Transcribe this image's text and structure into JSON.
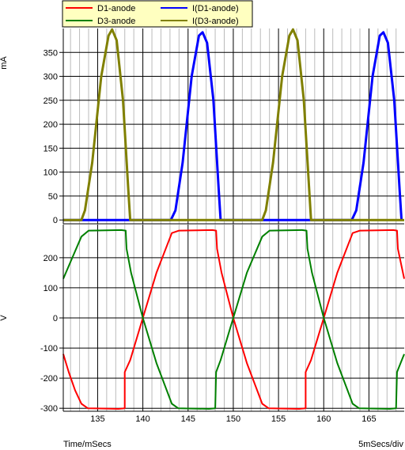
{
  "chart_data": [
    {
      "type": "line",
      "ylabel": "mA",
      "ylim": [
        -8,
        400
      ],
      "yticks": [
        0,
        50,
        100,
        150,
        200,
        250,
        300,
        350
      ],
      "xlim": [
        131.2,
        168.9
      ],
      "grid": true,
      "legend": [
        {
          "name": "I(D1-anode)",
          "color": "#0000ff"
        },
        {
          "name": "I(D3-anode)",
          "color": "#808000"
        }
      ],
      "series": [
        {
          "name": "I(D1-anode)",
          "color": "#0000ff",
          "x": [
            131.2,
            133.2,
            143.1,
            143.6,
            144.4,
            145.4,
            146.2,
            146.6,
            147.1,
            147.8,
            148.4,
            148.6,
            153.1,
            158.2,
            163.1,
            163.6,
            164.4,
            165.4,
            166.2,
            166.6,
            167.1,
            167.8,
            168.4,
            168.6
          ],
          "y": [
            0,
            0,
            0,
            20,
            120,
            300,
            385,
            392,
            370,
            250,
            60,
            0,
            0,
            0,
            0,
            20,
            120,
            300,
            385,
            392,
            370,
            250,
            60,
            0
          ]
        },
        {
          "name": "I(D3-anode)",
          "color": "#808000",
          "x": [
            131.2,
            133.2,
            133.6,
            134.4,
            135.4,
            136.2,
            136.6,
            137.1,
            137.8,
            138.4,
            138.6,
            153.2,
            153.6,
            154.4,
            155.4,
            156.2,
            156.6,
            157.1,
            157.8,
            158.4,
            158.6,
            168.9
          ],
          "y": [
            0,
            0,
            20,
            120,
            300,
            385,
            398,
            375,
            250,
            60,
            0,
            0,
            20,
            120,
            300,
            385,
            398,
            375,
            250,
            60,
            0,
            0
          ]
        }
      ]
    },
    {
      "type": "line",
      "ylabel": "V",
      "xlabel": "Time/mSecs",
      "ylim": [
        -310,
        310
      ],
      "yticks": [
        -300,
        -200,
        -100,
        0,
        100,
        200
      ],
      "xlim": [
        131.2,
        168.9
      ],
      "xticks": [
        135,
        140,
        145,
        150,
        155,
        160,
        165
      ],
      "grid": true,
      "legend": [
        {
          "name": "D1-anode",
          "color": "#ff0000"
        },
        {
          "name": "D3-anode",
          "color": "#008000"
        }
      ],
      "series": [
        {
          "name": "D1-anode",
          "color": "#ff0000",
          "x": [
            131.2,
            131.8,
            132.5,
            133.2,
            133.9,
            137.3,
            138.0,
            138.0,
            138.6,
            140.0,
            141.5,
            143.2,
            144.0,
            147.7,
            148.1,
            148.2,
            148.7,
            150.0,
            151.5,
            153.2,
            153.9,
            157.3,
            158.0,
            158.0,
            158.6,
            160.0,
            161.5,
            163.2,
            164.0,
            167.7,
            168.1,
            168.2,
            168.9
          ],
          "y": [
            -120,
            -180,
            -240,
            -285,
            -300,
            -302,
            -300,
            -180,
            -140,
            0,
            150,
            282,
            290,
            292,
            290,
            230,
            150,
            0,
            -150,
            -285,
            -300,
            -302,
            -300,
            -180,
            -140,
            0,
            150,
            282,
            290,
            292,
            290,
            230,
            130
          ]
        },
        {
          "name": "D3-anode",
          "color": "#008000",
          "x": [
            131.2,
            132.2,
            133.2,
            134.0,
            137.6,
            138.1,
            138.2,
            138.7,
            140.0,
            141.5,
            143.2,
            143.9,
            147.3,
            148.0,
            148.1,
            148.6,
            150.0,
            151.5,
            153.2,
            154.0,
            157.6,
            158.1,
            158.2,
            158.7,
            160.0,
            161.5,
            163.2,
            163.9,
            167.3,
            168.0,
            168.1,
            168.9
          ],
          "y": [
            130,
            200,
            270,
            290,
            292,
            290,
            230,
            150,
            0,
            -150,
            -285,
            -300,
            -302,
            -300,
            -180,
            -140,
            0,
            150,
            270,
            290,
            292,
            290,
            230,
            150,
            0,
            -150,
            -285,
            -300,
            -302,
            -300,
            -180,
            -120
          ]
        }
      ]
    }
  ],
  "footer": {
    "time_label": "Time/mSecs",
    "scale_label": "5mSecs/div"
  }
}
